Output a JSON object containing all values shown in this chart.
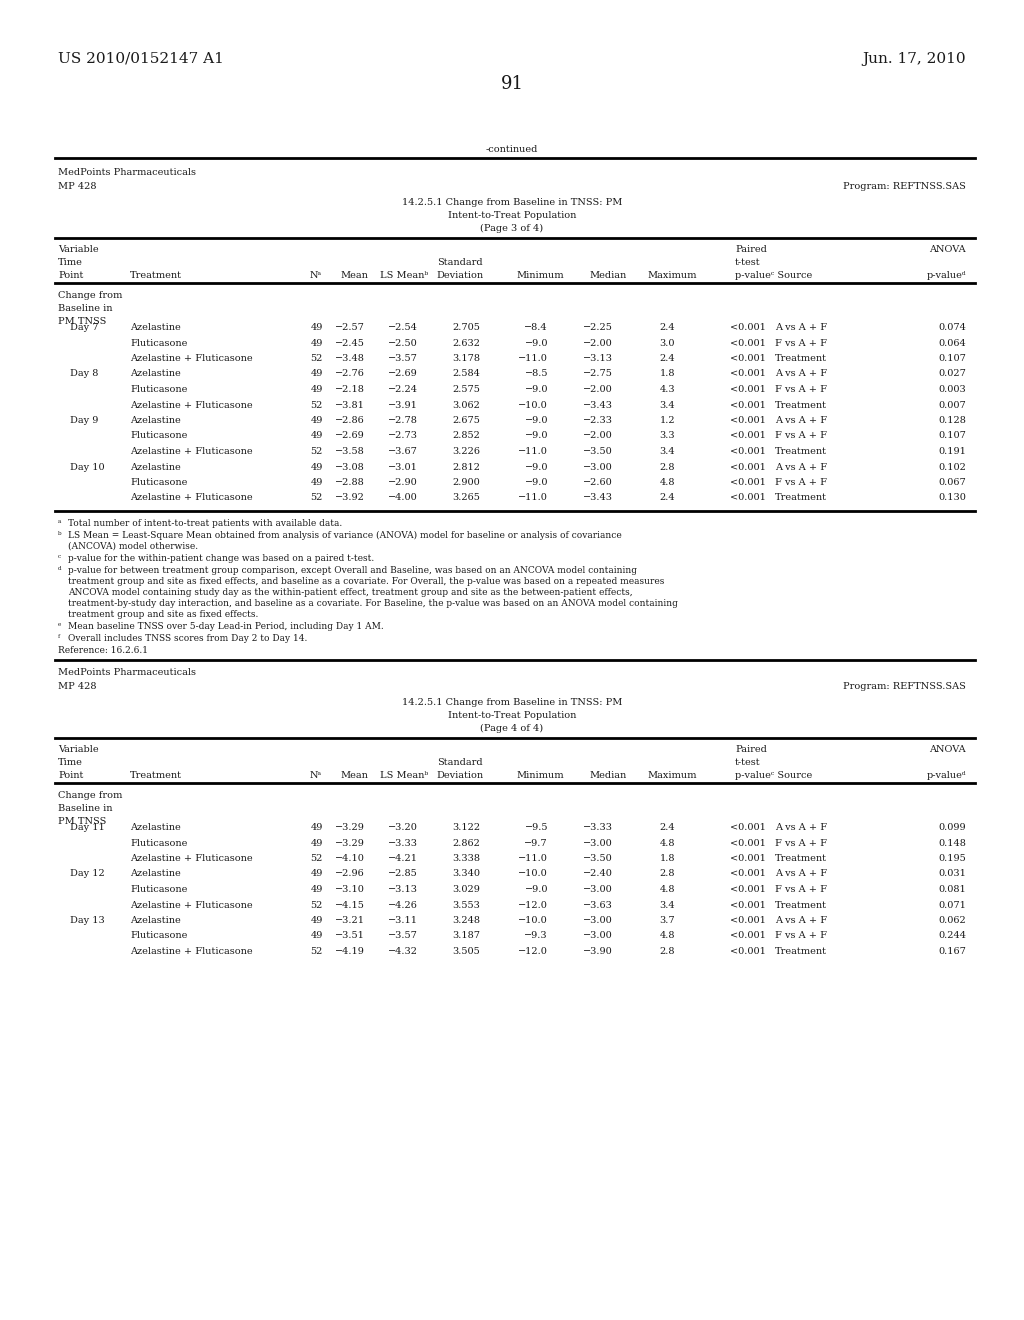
{
  "header_left": "US 2010/0152147 A1",
  "header_right": "Jun. 17, 2010",
  "page_number": "91",
  "continued_text": "-continued",
  "section1": {
    "company": "MedPoints Pharmaceuticals",
    "id": "MP 428",
    "program": "Program: REFTNSS.SAS",
    "title1": "14.2.5.1 Change from Baseline in TNSS: PM",
    "title2": "Intent-to-Treat Population",
    "title3": "(Page 3 of 4)",
    "data": [
      [
        "Day 7",
        "Azelastine",
        "49",
        "−2.57",
        "−2.54",
        "2.705",
        "−8.4",
        "−2.25",
        "2.4",
        "<0.001",
        "A vs A + F",
        "0.074"
      ],
      [
        "",
        "Fluticasone",
        "49",
        "−2.45",
        "−2.50",
        "2.632",
        "−9.0",
        "−2.00",
        "3.0",
        "<0.001",
        "F vs A + F",
        "0.064"
      ],
      [
        "",
        "Azelastine + Fluticasone",
        "52",
        "−3.48",
        "−3.57",
        "3.178",
        "−11.0",
        "−3.13",
        "2.4",
        "<0.001",
        "Treatment",
        "0.107"
      ],
      [
        "Day 8",
        "Azelastine",
        "49",
        "−2.76",
        "−2.69",
        "2.584",
        "−8.5",
        "−2.75",
        "1.8",
        "<0.001",
        "A vs A + F",
        "0.027"
      ],
      [
        "",
        "Fluticasone",
        "49",
        "−2.18",
        "−2.24",
        "2.575",
        "−9.0",
        "−2.00",
        "4.3",
        "<0.001",
        "F vs A + F",
        "0.003"
      ],
      [
        "",
        "Azelastine + Fluticasone",
        "52",
        "−3.81",
        "−3.91",
        "3.062",
        "−10.0",
        "−3.43",
        "3.4",
        "<0.001",
        "Treatment",
        "0.007"
      ],
      [
        "Day 9",
        "Azelastine",
        "49",
        "−2.86",
        "−2.78",
        "2.675",
        "−9.0",
        "−2.33",
        "1.2",
        "<0.001",
        "A vs A + F",
        "0.128"
      ],
      [
        "",
        "Fluticasone",
        "49",
        "−2.69",
        "−2.73",
        "2.852",
        "−9.0",
        "−2.00",
        "3.3",
        "<0.001",
        "F vs A + F",
        "0.107"
      ],
      [
        "",
        "Azelastine + Fluticasone",
        "52",
        "−3.58",
        "−3.67",
        "3.226",
        "−11.0",
        "−3.50",
        "3.4",
        "<0.001",
        "Treatment",
        "0.191"
      ],
      [
        "Day 10",
        "Azelastine",
        "49",
        "−3.08",
        "−3.01",
        "2.812",
        "−9.0",
        "−3.00",
        "2.8",
        "<0.001",
        "A vs A + F",
        "0.102"
      ],
      [
        "",
        "Fluticasone",
        "49",
        "−2.88",
        "−2.90",
        "2.900",
        "−9.0",
        "−2.60",
        "4.8",
        "<0.001",
        "F vs A + F",
        "0.067"
      ],
      [
        "",
        "Azelastine + Fluticasone",
        "52",
        "−3.92",
        "−4.00",
        "3.265",
        "−11.0",
        "−3.43",
        "2.4",
        "<0.001",
        "Treatment",
        "0.130"
      ]
    ]
  },
  "section2": {
    "company": "MedPoints Pharmaceuticals",
    "id": "MP 428",
    "program": "Program: REFTNSS.SAS",
    "title1": "14.2.5.1 Change from Baseline in TNSS: PM",
    "title2": "Intent-to-Treat Population",
    "title3": "(Page 4 of 4)",
    "data": [
      [
        "Day 11",
        "Azelastine",
        "49",
        "−3.29",
        "−3.20",
        "3.122",
        "−9.5",
        "−3.33",
        "2.4",
        "<0.001",
        "A vs A + F",
        "0.099"
      ],
      [
        "",
        "Fluticasone",
        "49",
        "−3.29",
        "−3.33",
        "2.862",
        "−9.7",
        "−3.00",
        "4.8",
        "<0.001",
        "F vs A + F",
        "0.148"
      ],
      [
        "",
        "Azelastine + Fluticasone",
        "52",
        "−4.10",
        "−4.21",
        "3.338",
        "−11.0",
        "−3.50",
        "1.8",
        "<0.001",
        "Treatment",
        "0.195"
      ],
      [
        "Day 12",
        "Azelastine",
        "49",
        "−2.96",
        "−2.85",
        "3.340",
        "−10.0",
        "−2.40",
        "2.8",
        "<0.001",
        "A vs A + F",
        "0.031"
      ],
      [
        "",
        "Fluticasone",
        "49",
        "−3.10",
        "−3.13",
        "3.029",
        "−9.0",
        "−3.00",
        "4.8",
        "<0.001",
        "F vs A + F",
        "0.081"
      ],
      [
        "",
        "Azelastine + Fluticasone",
        "52",
        "−4.15",
        "−4.26",
        "3.553",
        "−12.0",
        "−3.63",
        "3.4",
        "<0.001",
        "Treatment",
        "0.071"
      ],
      [
        "Day 13",
        "Azelastine",
        "49",
        "−3.21",
        "−3.11",
        "3.248",
        "−10.0",
        "−3.00",
        "3.7",
        "<0.001",
        "A vs A + F",
        "0.062"
      ],
      [
        "",
        "Fluticasone",
        "49",
        "−3.51",
        "−3.57",
        "3.187",
        "−9.3",
        "−3.00",
        "4.8",
        "<0.001",
        "F vs A + F",
        "0.244"
      ],
      [
        "",
        "Azelastine + Fluticasone",
        "52",
        "−4.19",
        "−4.32",
        "3.505",
        "−12.0",
        "−3.90",
        "2.8",
        "<0.001",
        "Treatment",
        "0.167"
      ]
    ]
  },
  "bg_color": "#ffffff",
  "text_color": "#1a1a1a",
  "font_size": 7.0,
  "fn_font_size": 6.5,
  "header_font_size": 11.0,
  "page_num_font_size": 13.0
}
